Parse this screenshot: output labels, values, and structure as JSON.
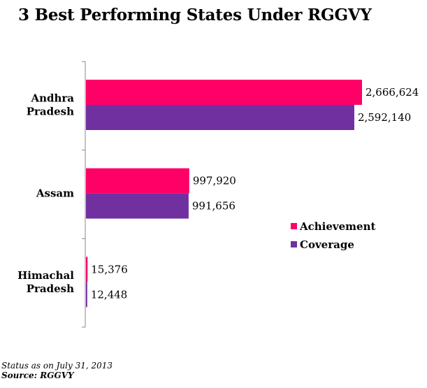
{
  "chart_data": {
    "type": "bar",
    "orientation": "horizontal",
    "title": "3 Best Performing States Under RGGVY",
    "categories": [
      [
        "Andhra",
        "Pradesh"
      ],
      [
        "Assam"
      ],
      [
        "Himachal",
        "Pradesh"
      ]
    ],
    "series": [
      {
        "name": "Achievement",
        "color": "#FF0066",
        "values": [
          2666624,
          997920,
          15376
        ],
        "labels": [
          "2,666,624",
          "997,920",
          "15,376"
        ]
      },
      {
        "name": "Coverage",
        "color": "#7030A0",
        "values": [
          2592140,
          991656,
          12448
        ],
        "labels": [
          "2,592,140",
          "991,656",
          "12,448"
        ]
      }
    ],
    "xlim": [
      0,
      2800000
    ],
    "grid": false,
    "value_axis_visible": false,
    "legend_position": "right"
  },
  "footnote": {
    "status": "Status as on July 31, 2013",
    "source": "Source: RGGVY"
  }
}
